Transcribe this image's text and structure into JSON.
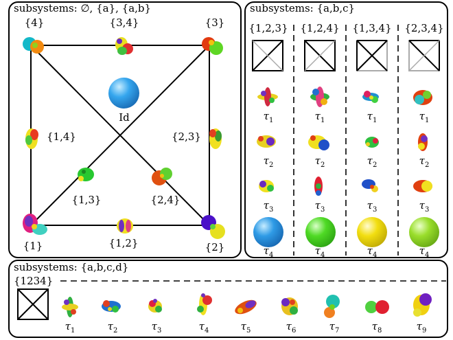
{
  "panel_tl": {
    "title": "subsystems: ∅, {a}, {a,b}",
    "corners": {
      "tl": "{4}",
      "tr": "{3}",
      "bl": "{1}",
      "br": "{2}"
    },
    "edges": {
      "top": "{3,4}",
      "left": "{1,4}",
      "right": "{2,3}",
      "bottom": "{1,2}"
    },
    "diag": {
      "d13": "{1,3}",
      "d24": "{2,4}"
    },
    "center": "Id"
  },
  "panel_tr": {
    "title": "subsystems: {a,b,c}",
    "columns": [
      {
        "header": "{1,2,3}",
        "labels": [
          "τ1",
          "τ2",
          "τ3",
          "τ4"
        ]
      },
      {
        "header": "{1,2,4}",
        "labels": [
          "τ1",
          "τ2",
          "τ3",
          "τ4"
        ]
      },
      {
        "header": "{1,3,4}",
        "labels": [
          "τ1",
          "τ2",
          "τ3",
          "τ4"
        ]
      },
      {
        "header": "{2,3,4}",
        "labels": [
          "τ1",
          "τ2",
          "τ3",
          "τ4"
        ]
      }
    ],
    "sphere_colors": [
      "#1a7fd0",
      "#3fcf1a",
      "#f0dc10",
      "#8ed62a"
    ]
  },
  "panel_bottom": {
    "title": "subsystems: {a,b,c,d}",
    "row_label": "{1234}",
    "labels": [
      "τ1",
      "τ2",
      "τ3",
      "τ4",
      "τ5",
      "τ6",
      "τ7",
      "τ8",
      "τ9"
    ]
  }
}
